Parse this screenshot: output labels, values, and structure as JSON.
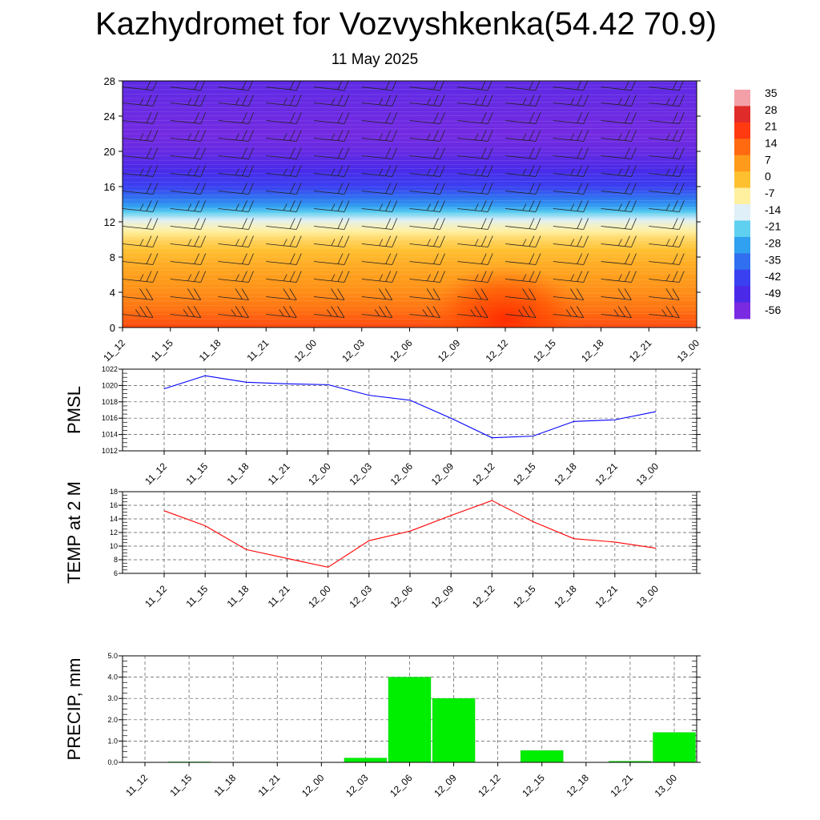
{
  "title": "Kazhydromet for Vozvyshkenka(54.42 70.9)",
  "subtitle": "11 May 2025",
  "time_labels": [
    "11_12",
    "11_15",
    "11_18",
    "11_21",
    "12_00",
    "12_03",
    "12_06",
    "12_09",
    "12_12",
    "12_15",
    "12_18",
    "12_21",
    "13_00"
  ],
  "chart_data": [
    {
      "type": "heatmap",
      "title": "Kazhydromet for Vozvyshkenka(54.42 70.9)",
      "subtitle": "11 May 2025",
      "x": [
        "11_12",
        "11_15",
        "11_18",
        "11_21",
        "12_00",
        "12_03",
        "12_06",
        "12_09",
        "12_12",
        "12_15",
        "12_18",
        "12_21",
        "13_00"
      ],
      "ylim": [
        0,
        28
      ],
      "yticks": [
        0,
        4,
        8,
        12,
        16,
        20,
        24,
        28
      ],
      "colorbar_labels": [
        "35",
        "28",
        "21",
        "14",
        "7",
        "0",
        "-7",
        "-14",
        "-21",
        "-28",
        "-35",
        "-42",
        "-49",
        "-56"
      ],
      "colorbar_colors": [
        "#f3a0a8",
        "#e02b2b",
        "#ff3a10",
        "#ff6a10",
        "#ff9a1a",
        "#ffc030",
        "#fff0a0",
        "#e0f0f8",
        "#60d0f0",
        "#30a0f0",
        "#3070f0",
        "#3a40f0",
        "#4a2ae8",
        "#7a2ae0"
      ],
      "levels": [
        0,
        1,
        2,
        3,
        4,
        6,
        8,
        10,
        11,
        12,
        13,
        14,
        16,
        18,
        20,
        22,
        24,
        26,
        28
      ],
      "temperature_profile": [
        19,
        16,
        13,
        11,
        9,
        6,
        2,
        -3,
        -7,
        -12,
        -20,
        -30,
        -42,
        -49,
        -53,
        -55,
        -54,
        -53,
        -52
      ],
      "surface_warm_anomaly": {
        "center_time_index": 8,
        "peak_value": 6
      }
    },
    {
      "type": "line",
      "ylabel": "PMSL",
      "x": [
        "11_12",
        "11_15",
        "11_18",
        "11_21",
        "12_00",
        "12_03",
        "12_06",
        "12_09",
        "12_12",
        "12_15",
        "12_18",
        "12_21",
        "13_00"
      ],
      "ylim": [
        1012,
        1022
      ],
      "yticks": [
        "1012",
        "1014",
        "1016",
        "1018",
        "1020",
        "1022"
      ],
      "series": [
        {
          "color": "#0000ff",
          "values": [
            1019.6,
            1021.2,
            1020.4,
            1020.2,
            1020.1,
            1018.8,
            1018.2,
            1016.0,
            1013.6,
            1013.8,
            1015.6,
            1015.8,
            1016.8
          ]
        }
      ],
      "grid": true
    },
    {
      "type": "line",
      "ylabel": "TEMP at 2 M",
      "x": [
        "11_12",
        "11_15",
        "11_18",
        "11_21",
        "12_00",
        "12_03",
        "12_06",
        "12_09",
        "12_12",
        "12_15",
        "12_18",
        "12_21",
        "13_00"
      ],
      "ylim": [
        6,
        18
      ],
      "yticks": [
        "6",
        "8",
        "10",
        "12",
        "14",
        "16",
        "18"
      ],
      "series": [
        {
          "color": "#ff0000",
          "values": [
            15.2,
            13.0,
            9.5,
            8.2,
            6.9,
            10.8,
            12.2,
            14.5,
            16.7,
            13.6,
            11.1,
            10.6,
            9.7
          ]
        }
      ],
      "grid": true
    },
    {
      "type": "bar",
      "ylabel": "PRECIP, mm",
      "categories": [
        "11_12",
        "11_15",
        "11_18",
        "11_21",
        "12_00",
        "12_03",
        "12_06",
        "12_09",
        "12_12",
        "12_15",
        "12_18",
        "12_21",
        "13_00"
      ],
      "values": [
        0.0,
        0.02,
        0.0,
        0.0,
        0.0,
        0.2,
        4.0,
        3.0,
        0.0,
        0.55,
        0.0,
        0.05,
        1.4
      ],
      "ylim": [
        0,
        5
      ],
      "yticks": [
        "0.0",
        "1.0",
        "2.0",
        "3.0",
        "4.0",
        "5.0"
      ],
      "color": "#00ee00",
      "grid": true
    }
  ]
}
